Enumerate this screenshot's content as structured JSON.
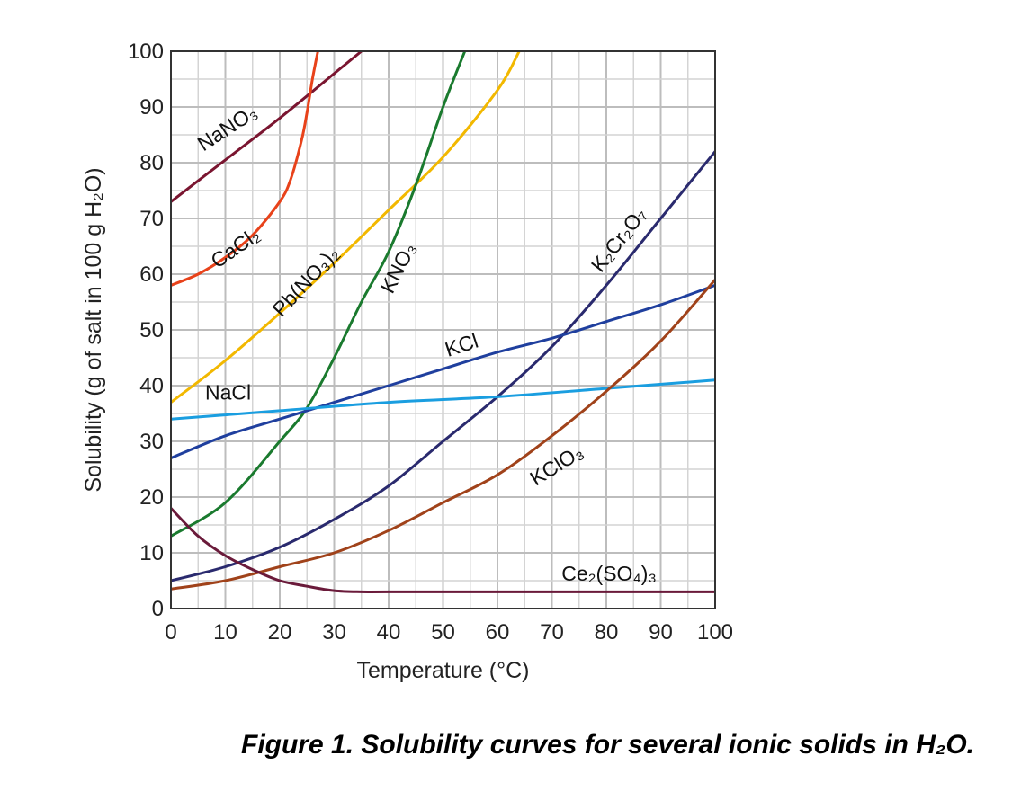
{
  "chart_data": {
    "type": "line",
    "xlabel": "Temperature (°C)",
    "ylabel": "Solubility (g of salt in 100 g H₂O)",
    "xlim": [
      0,
      100
    ],
    "ylim": [
      0,
      100
    ],
    "xticks": [
      "0",
      "10",
      "20",
      "30",
      "40",
      "50",
      "60",
      "70",
      "80",
      "90",
      "100"
    ],
    "yticks": [
      "0",
      "10",
      "20",
      "30",
      "40",
      "50",
      "60",
      "70",
      "80",
      "90",
      "100"
    ],
    "grid": true,
    "series": [
      {
        "name": "NaNO₃",
        "color": "#7a1530",
        "x": [
          0,
          10,
          20,
          30,
          35
        ],
        "y": [
          73,
          80.5,
          88,
          96,
          100
        ]
      },
      {
        "name": "CaCl₂",
        "color": "#e8421a",
        "x": [
          0,
          5,
          10,
          15,
          20,
          22,
          24,
          25,
          26,
          27
        ],
        "y": [
          58,
          60,
          63,
          67,
          73,
          77,
          84,
          89,
          95,
          100
        ]
      },
      {
        "name": "Pb(NO₃)₂",
        "color": "#f2b800",
        "x": [
          0,
          10,
          20,
          30,
          40,
          50,
          60,
          64
        ],
        "y": [
          37,
          44.5,
          53,
          62,
          71.5,
          81,
          93,
          100
        ]
      },
      {
        "name": "KNO₃",
        "color": "#1a7a2e",
        "x": [
          0,
          10,
          20,
          25,
          30,
          35,
          40,
          45,
          50,
          54
        ],
        "y": [
          13,
          19,
          30,
          36,
          45,
          55,
          64,
          76,
          90,
          100
        ]
      },
      {
        "name": "K₂Cr₂O₇",
        "color": "#2a2a6e",
        "x": [
          0,
          10,
          20,
          30,
          40,
          50,
          60,
          70,
          80,
          90,
          100
        ],
        "y": [
          5,
          7.5,
          11,
          16,
          22,
          30,
          38,
          47,
          58,
          70,
          82
        ]
      },
      {
        "name": "KCl",
        "color": "#1f3f9e",
        "x": [
          0,
          10,
          20,
          30,
          40,
          50,
          60,
          70,
          80,
          90,
          100
        ],
        "y": [
          27,
          31,
          34,
          37,
          40,
          43,
          46,
          48.5,
          51.5,
          54.5,
          58
        ]
      },
      {
        "name": "NaCl",
        "color": "#1a9ee0",
        "x": [
          0,
          20,
          40,
          60,
          80,
          100
        ],
        "y": [
          34,
          35.5,
          37,
          38,
          39.5,
          41
        ]
      },
      {
        "name": "KClO₃",
        "color": "#a0421a",
        "x": [
          0,
          10,
          20,
          30,
          40,
          50,
          60,
          70,
          80,
          90,
          100
        ],
        "y": [
          3.5,
          5,
          7.5,
          10,
          14,
          19,
          24,
          31,
          39,
          48,
          59
        ]
      },
      {
        "name": "Ce₂(SO₄)₃",
        "color": "#6a1a3a",
        "x": [
          0,
          5,
          10,
          15,
          20,
          25,
          30,
          35,
          40,
          60,
          80,
          100
        ],
        "y": [
          18,
          13,
          9.5,
          7,
          5,
          4,
          3.2,
          3,
          3,
          3,
          3,
          3
        ]
      }
    ],
    "labels": [
      {
        "series": "NaNO₃",
        "text": "NaNO₃",
        "x": 10.5,
        "y": 86,
        "angle": -33
      },
      {
        "series": "CaCl₂",
        "text": "CaCl₂",
        "x": 12,
        "y": 64.5,
        "angle": -35
      },
      {
        "series": "Pb(NO₃)₂",
        "text": "Pb(NO₃)₂",
        "x": 25,
        "y": 58.5,
        "angle": -47
      },
      {
        "series": "KNO₃",
        "text": "KNO₃",
        "x": 42,
        "y": 61,
        "angle": -63
      },
      {
        "series": "K₂Cr₂O₇",
        "text": "K₂Cr₂O₇",
        "x": 82.5,
        "y": 66,
        "angle": -52
      },
      {
        "series": "KCl",
        "text": "KCl",
        "x": 53.5,
        "y": 47,
        "angle": -18
      },
      {
        "series": "NaCl",
        "text": "NaCl",
        "x": 10.5,
        "y": 38.5,
        "angle": 0
      },
      {
        "series": "KClO₃",
        "text": "KClO₃",
        "x": 71,
        "y": 25.5,
        "angle": -32
      },
      {
        "series": "Ce₂(SO₄)₃",
        "text": "Ce₂(SO₄)₃",
        "x": 80.5,
        "y": 6,
        "angle": 0
      }
    ]
  },
  "caption": "Figure 1. Solubility curves for several ionic solids in H₂O."
}
